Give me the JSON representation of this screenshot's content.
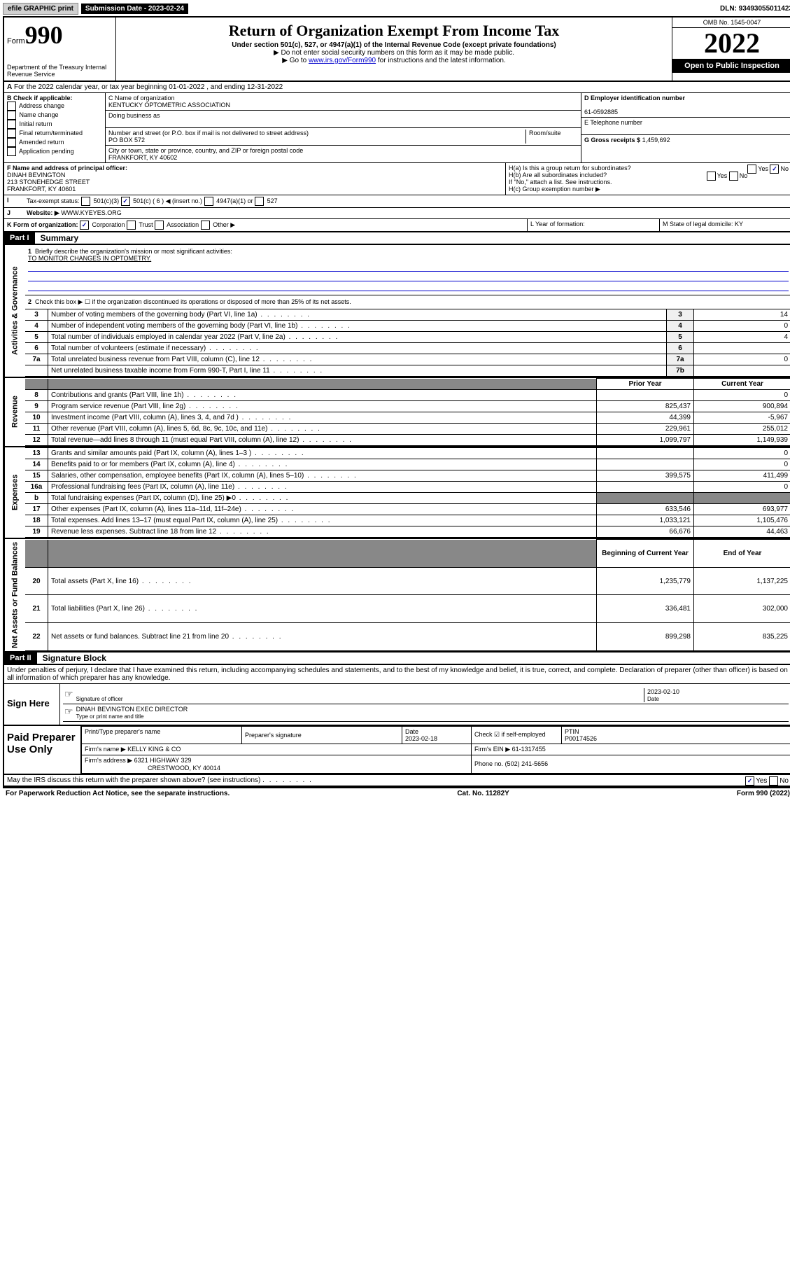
{
  "topbar": {
    "efile": "efile GRAPHIC print",
    "subdate_label": "Submission Date - 2023-02-24",
    "dln": "DLN: 93493055011423"
  },
  "header": {
    "form_prefix": "Form",
    "form_no": "990",
    "dept": "Department of the Treasury Internal Revenue Service",
    "title": "Return of Organization Exempt From Income Tax",
    "sub": "Under section 501(c), 527, or 4947(a)(1) of the Internal Revenue Code (except private foundations)",
    "note1": "▶ Do not enter social security numbers on this form as it may be made public.",
    "note2_pre": "▶ Go to ",
    "note2_link": "www.irs.gov/Form990",
    "note2_post": " for instructions and the latest information.",
    "omb": "OMB No. 1545-0047",
    "year": "2022",
    "open": "Open to Public Inspection"
  },
  "row_a": "For the 2022 calendar year, or tax year beginning 01-01-2022   , and ending 12-31-2022",
  "col_b": {
    "label": "B Check if applicable:",
    "items": [
      "Address change",
      "Name change",
      "Initial return",
      "Final return/terminated",
      "Amended return",
      "Application pending"
    ]
  },
  "col_c": {
    "name_lbl": "C Name of organization",
    "name": "KENTUCKY OPTOMETRIC ASSOCIATION",
    "dba_lbl": "Doing business as",
    "addr_lbl": "Number and street (or P.O. box if mail is not delivered to street address)",
    "room_lbl": "Room/suite",
    "addr": "PO BOX 572",
    "city_lbl": "City or town, state or province, country, and ZIP or foreign postal code",
    "city": "FRANKFORT, KY  40602"
  },
  "col_d": {
    "ein_lbl": "D Employer identification number",
    "ein": "61-0592885",
    "tel_lbl": "E Telephone number",
    "gross_lbl": "G Gross receipts $",
    "gross": "1,459,692"
  },
  "row_f": {
    "lbl": "F  Name and address of principal officer:",
    "name": "DINAH BEVINGTON",
    "addr1": "213 STONEHEDGE STREET",
    "addr2": "FRANKFORT, KY  40601"
  },
  "row_h": {
    "ha": "H(a)  Is this a group return for subordinates?",
    "hb": "H(b)  Are all subordinates included?",
    "hb_note": "If \"No,\" attach a list. See instructions.",
    "hc": "H(c)  Group exemption number ▶"
  },
  "row_i": {
    "lbl": "Tax-exempt status:",
    "opts": [
      "501(c)(3)",
      "501(c) ( 6 ) ◀ (insert no.)",
      "4947(a)(1) or",
      "527"
    ]
  },
  "row_j": {
    "lbl": "Website: ▶",
    "val": "WWW.KYEYES.ORG"
  },
  "row_k": {
    "lbl": "K Form of organization:",
    "opts": [
      "Corporation",
      "Trust",
      "Association",
      "Other ▶"
    ],
    "l_lbl": "L Year of formation:",
    "m_lbl": "M State of legal domicile: KY"
  },
  "part1": {
    "hdr": "Part I",
    "title": "Summary",
    "q1_lbl": "Briefly describe the organization's mission or most significant activities:",
    "q1_val": "TO MONITOR CHANGES IN OPTOMETRY.",
    "q2": "Check this box ▶ ☐  if the organization discontinued its operations or disposed of more than 25% of its net assets.",
    "rows_gov": [
      {
        "n": "3",
        "d": "Number of voting members of the governing body (Part VI, line 1a)",
        "b": "3",
        "v": "14"
      },
      {
        "n": "4",
        "d": "Number of independent voting members of the governing body (Part VI, line 1b)",
        "b": "4",
        "v": "0"
      },
      {
        "n": "5",
        "d": "Total number of individuals employed in calendar year 2022 (Part V, line 2a)",
        "b": "5",
        "v": "4"
      },
      {
        "n": "6",
        "d": "Total number of volunteers (estimate if necessary)",
        "b": "6",
        "v": ""
      },
      {
        "n": "7a",
        "d": "Total unrelated business revenue from Part VIII, column (C), line 12",
        "b": "7a",
        "v": "0"
      },
      {
        "n": "",
        "d": "Net unrelated business taxable income from Form 990-T, Part I, line 11",
        "b": "7b",
        "v": ""
      }
    ],
    "col_prior": "Prior Year",
    "col_curr": "Current Year",
    "rows_rev": [
      {
        "n": "8",
        "d": "Contributions and grants (Part VIII, line 1h)",
        "p": "",
        "c": "0"
      },
      {
        "n": "9",
        "d": "Program service revenue (Part VIII, line 2g)",
        "p": "825,437",
        "c": "900,894"
      },
      {
        "n": "10",
        "d": "Investment income (Part VIII, column (A), lines 3, 4, and 7d )",
        "p": "44,399",
        "c": "-5,967"
      },
      {
        "n": "11",
        "d": "Other revenue (Part VIII, column (A), lines 5, 6d, 8c, 9c, 10c, and 11e)",
        "p": "229,961",
        "c": "255,012"
      },
      {
        "n": "12",
        "d": "Total revenue—add lines 8 through 11 (must equal Part VIII, column (A), line 12)",
        "p": "1,099,797",
        "c": "1,149,939"
      }
    ],
    "rows_exp": [
      {
        "n": "13",
        "d": "Grants and similar amounts paid (Part IX, column (A), lines 1–3 )",
        "p": "",
        "c": "0"
      },
      {
        "n": "14",
        "d": "Benefits paid to or for members (Part IX, column (A), line 4)",
        "p": "",
        "c": "0"
      },
      {
        "n": "15",
        "d": "Salaries, other compensation, employee benefits (Part IX, column (A), lines 5–10)",
        "p": "399,575",
        "c": "411,499"
      },
      {
        "n": "16a",
        "d": "Professional fundraising fees (Part IX, column (A), line 11e)",
        "p": "",
        "c": "0"
      },
      {
        "n": "b",
        "d": "Total fundraising expenses (Part IX, column (D), line 25) ▶0",
        "p": "shade",
        "c": "shade"
      },
      {
        "n": "17",
        "d": "Other expenses (Part IX, column (A), lines 11a–11d, 11f–24e)",
        "p": "633,546",
        "c": "693,977"
      },
      {
        "n": "18",
        "d": "Total expenses. Add lines 13–17 (must equal Part IX, column (A), line 25)",
        "p": "1,033,121",
        "c": "1,105,476"
      },
      {
        "n": "19",
        "d": "Revenue less expenses. Subtract line 18 from line 12",
        "p": "66,676",
        "c": "44,463"
      }
    ],
    "col_beg": "Beginning of Current Year",
    "col_end": "End of Year",
    "rows_net": [
      {
        "n": "20",
        "d": "Total assets (Part X, line 16)",
        "p": "1,235,779",
        "c": "1,137,225"
      },
      {
        "n": "21",
        "d": "Total liabilities (Part X, line 26)",
        "p": "336,481",
        "c": "302,000"
      },
      {
        "n": "22",
        "d": "Net assets or fund balances. Subtract line 21 from line 20",
        "p": "899,298",
        "c": "835,225"
      }
    ],
    "vert_gov": "Activities & Governance",
    "vert_rev": "Revenue",
    "vert_exp": "Expenses",
    "vert_net": "Net Assets or Fund Balances"
  },
  "part2": {
    "hdr": "Part II",
    "title": "Signature Block",
    "decl": "Under penalties of perjury, I declare that I have examined this return, including accompanying schedules and statements, and to the best of my knowledge and belief, it is true, correct, and complete. Declaration of preparer (other than officer) is based on all information of which preparer has any knowledge.",
    "sign_here": "Sign Here",
    "sig_officer": "Signature of officer",
    "sig_date": "2023-02-10",
    "sig_date_lbl": "Date",
    "sig_name": "DINAH BEVINGTON  EXEC DIRECTOR",
    "sig_name_lbl": "Type or print name and title",
    "paid": "Paid Preparer Use Only",
    "p_name_lbl": "Print/Type preparer's name",
    "p_sig_lbl": "Preparer's signature",
    "p_date_lbl": "Date",
    "p_date": "2023-02-18",
    "p_check": "Check ☑ if self-employed",
    "p_ptin_lbl": "PTIN",
    "p_ptin": "P00174526",
    "firm_name_lbl": "Firm's name  ▶",
    "firm_name": "KELLY KING & CO",
    "firm_ein_lbl": "Firm's EIN ▶",
    "firm_ein": "61-1317455",
    "firm_addr_lbl": "Firm's address ▶",
    "firm_addr1": "6321 HIGHWAY 329",
    "firm_addr2": "CRESTWOOD, KY  40014",
    "firm_phone_lbl": "Phone no.",
    "firm_phone": "(502) 241-5656",
    "discuss": "May the IRS discuss this return with the preparer shown above? (see instructions)"
  },
  "footer": {
    "pra": "For Paperwork Reduction Act Notice, see the separate instructions.",
    "cat": "Cat. No. 11282Y",
    "form": "Form 990 (2022)"
  }
}
